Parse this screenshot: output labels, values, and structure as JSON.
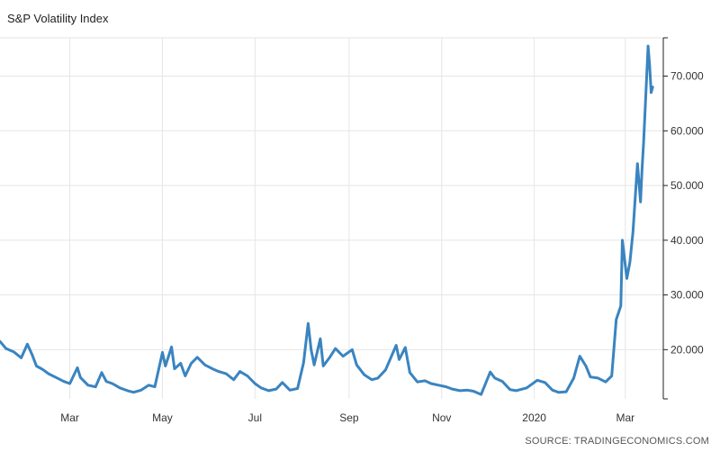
{
  "source": "SOURCE: TRADINGECONOMICS.COM",
  "chart_data": {
    "type": "line",
    "title": "S&P Volatility Index",
    "xlabel": "",
    "ylabel": "",
    "ylim": [
      11,
      77
    ],
    "y_ticks": [
      20,
      30,
      40,
      50,
      60,
      70
    ],
    "y_tick_labels": [
      "20.000",
      "30.000",
      "40.000",
      "50.000",
      "60.000",
      "70.000"
    ],
    "x_ticks": [
      {
        "label": "Mar",
        "x": "2019-03-01"
      },
      {
        "label": "May",
        "x": "2019-05-01"
      },
      {
        "label": "Jul",
        "x": "2019-07-01"
      },
      {
        "label": "Sep",
        "x": "2019-09-01"
      },
      {
        "label": "Nov",
        "x": "2019-11-01"
      },
      {
        "label": "2020",
        "x": "2020-01-01"
      },
      {
        "label": "Mar",
        "x": "2020-03-01"
      }
    ],
    "xlim": [
      "2019-01-14",
      "2020-03-26"
    ],
    "grid": true,
    "y_axis_side": "right",
    "series": [
      {
        "color": "#3a84c0",
        "x": [
          "2019-01-14",
          "2019-01-18",
          "2019-01-23",
          "2019-01-28",
          "2019-02-01",
          "2019-02-04",
          "2019-02-07",
          "2019-02-11",
          "2019-02-15",
          "2019-02-20",
          "2019-02-25",
          "2019-03-01",
          "2019-03-06",
          "2019-03-08",
          "2019-03-13",
          "2019-03-18",
          "2019-03-22",
          "2019-03-25",
          "2019-03-29",
          "2019-04-03",
          "2019-04-08",
          "2019-04-12",
          "2019-04-17",
          "2019-04-22",
          "2019-04-26",
          "2019-05-01",
          "2019-05-03",
          "2019-05-07",
          "2019-05-09",
          "2019-05-13",
          "2019-05-16",
          "2019-05-20",
          "2019-05-24",
          "2019-05-29",
          "2019-06-03",
          "2019-06-07",
          "2019-06-12",
          "2019-06-17",
          "2019-06-21",
          "2019-06-26",
          "2019-07-01",
          "2019-07-05",
          "2019-07-10",
          "2019-07-15",
          "2019-07-19",
          "2019-07-24",
          "2019-07-29",
          "2019-08-02",
          "2019-08-05",
          "2019-08-07",
          "2019-08-09",
          "2019-08-13",
          "2019-08-15",
          "2019-08-19",
          "2019-08-23",
          "2019-08-28",
          "2019-09-03",
          "2019-09-06",
          "2019-09-11",
          "2019-09-16",
          "2019-09-20",
          "2019-09-25",
          "2019-10-02",
          "2019-10-04",
          "2019-10-08",
          "2019-10-11",
          "2019-10-16",
          "2019-10-21",
          "2019-10-25",
          "2019-10-30",
          "2019-11-04",
          "2019-11-08",
          "2019-11-13",
          "2019-11-18",
          "2019-11-22",
          "2019-11-27",
          "2019-12-03",
          "2019-12-06",
          "2019-12-11",
          "2019-12-16",
          "2019-12-20",
          "2019-12-27",
          "2020-01-03",
          "2020-01-08",
          "2020-01-13",
          "2020-01-17",
          "2020-01-22",
          "2020-01-27",
          "2020-01-31",
          "2020-02-04",
          "2020-02-07",
          "2020-02-12",
          "2020-02-17",
          "2020-02-21",
          "2020-02-24",
          "2020-02-27",
          "2020-02-28",
          "2020-03-02",
          "2020-03-04",
          "2020-03-06",
          "2020-03-09",
          "2020-03-11",
          "2020-03-12",
          "2020-03-13",
          "2020-03-16",
          "2020-03-17",
          "2020-03-18",
          "2020-03-19"
        ],
        "values": [
          21.5,
          20.2,
          19.6,
          18.5,
          21,
          19.2,
          17,
          16.4,
          15.6,
          14.9,
          14.2,
          13.8,
          16.7,
          14.9,
          13.5,
          13.2,
          15.8,
          14.2,
          13.8,
          13,
          12.5,
          12.2,
          12.6,
          13.5,
          13.2,
          19.5,
          17,
          20.5,
          16.5,
          17.5,
          15.2,
          17.5,
          18.6,
          17.2,
          16.5,
          16,
          15.6,
          14.5,
          16,
          15.2,
          13.8,
          13,
          12.5,
          12.8,
          14,
          12.6,
          12.9,
          17.6,
          24.8,
          20,
          17.2,
          22,
          17,
          18.5,
          20.2,
          18.8,
          20,
          17.2,
          15.4,
          14.5,
          14.8,
          16.3,
          20.8,
          18.2,
          20.4,
          15.8,
          14.1,
          14.3,
          13.8,
          13.5,
          13.2,
          12.8,
          12.5,
          12.6,
          12.4,
          11.8,
          15.9,
          14.8,
          14.2,
          12.7,
          12.5,
          13,
          14.4,
          14,
          12.6,
          12.2,
          12.3,
          14.8,
          18.8,
          17,
          15,
          14.8,
          14.1,
          15.2,
          25.5,
          28,
          40,
          33,
          36,
          41.5,
          54,
          47,
          53,
          57.8,
          75.5,
          72,
          67,
          68
        ]
      }
    ]
  }
}
